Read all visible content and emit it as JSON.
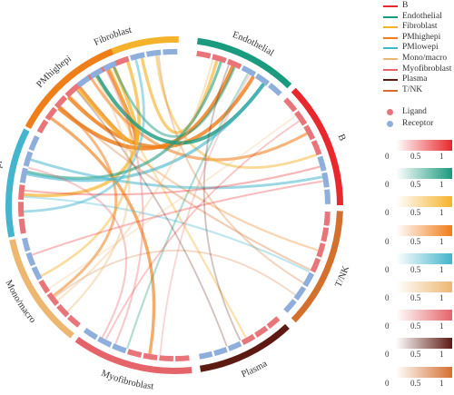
{
  "chart_data": {
    "type": "chord",
    "sectors": [
      {
        "name": "Fibroblast",
        "color": "#f4b32b"
      },
      {
        "name": "Endothelial",
        "color": "#1a9a7e"
      },
      {
        "name": "B",
        "color": "#e8282d"
      },
      {
        "name": "T/NK",
        "color": "#d4702e"
      },
      {
        "name": "Plasma",
        "color": "#5d1a13"
      },
      {
        "name": "Myofibroblast",
        "color": "#e46469"
      },
      {
        "name": "Mono/macro",
        "color": "#edb772"
      },
      {
        "name": "PMlowepi",
        "color": "#43b5cc"
      },
      {
        "name": "PMhighepi",
        "color": "#ef7d18"
      }
    ],
    "legend_order": [
      "B",
      "Endothelial",
      "Fibroblast",
      "PMhighepi",
      "PMlowepi",
      "Mono/macro",
      "Myofibroblast",
      "Plasma",
      "T/NK"
    ],
    "track_legend": [
      {
        "name": "Ligand",
        "color": "#e8757a"
      },
      {
        "name": "Receptor",
        "color": "#8eaedb"
      }
    ],
    "colorbars": [
      {
        "color": "#e8282d",
        "ticks": [
          "0",
          "0.5",
          "1"
        ]
      },
      {
        "color": "#1a9a7e",
        "ticks": [
          "0",
          "0.5",
          "1"
        ]
      },
      {
        "color": "#f4b32b",
        "ticks": [
          "0",
          "0.5",
          "1"
        ]
      },
      {
        "color": "#ef7d18",
        "ticks": [
          "0",
          "0.5",
          "1"
        ]
      },
      {
        "color": "#43b5cc",
        "ticks": [
          "0",
          "0.5",
          "1"
        ]
      },
      {
        "color": "#edb772",
        "ticks": [
          "0",
          "0.5",
          "1"
        ]
      },
      {
        "color": "#e46469",
        "ticks": [
          "0",
          "0.5",
          "1"
        ]
      },
      {
        "color": "#5d1a13",
        "ticks": [
          "0",
          "0.5",
          "1"
        ]
      },
      {
        "color": "#d4702e",
        "ticks": [
          "0",
          "0.5",
          "1"
        ]
      }
    ],
    "links": [
      {
        "from": "PMhighepi",
        "to": "Endothelial",
        "strength": 0.95
      },
      {
        "from": "PMhighepi",
        "to": "Endothelial",
        "strength": 0.9
      },
      {
        "from": "PMhighepi",
        "to": "Fibroblast",
        "strength": 0.85
      },
      {
        "from": "PMhighepi",
        "to": "B",
        "strength": 0.6
      },
      {
        "from": "PMhighepi",
        "to": "Myofibroblast",
        "strength": 0.7
      },
      {
        "from": "PMhighepi",
        "to": "Mono/macro",
        "strength": 0.55
      },
      {
        "from": "PMhighepi",
        "to": "T/NK",
        "strength": 0.3
      },
      {
        "from": "Fibroblast",
        "to": "PMhighepi",
        "strength": 0.8
      },
      {
        "from": "Fibroblast",
        "to": "PMlowepi",
        "strength": 0.75
      },
      {
        "from": "Fibroblast",
        "to": "Endothelial",
        "strength": 0.7
      },
      {
        "from": "Fibroblast",
        "to": "B",
        "strength": 0.5
      },
      {
        "from": "Fibroblast",
        "to": "Plasma",
        "strength": 0.35
      },
      {
        "from": "Fibroblast",
        "to": "Mono/macro",
        "strength": 0.45
      },
      {
        "from": "Endothelial",
        "to": "PMhighepi",
        "strength": 0.9
      },
      {
        "from": "Endothelial",
        "to": "PMlowepi",
        "strength": 0.6
      },
      {
        "from": "Endothelial",
        "to": "Fibroblast",
        "strength": 0.5
      },
      {
        "from": "Endothelial",
        "to": "Myofibroblast",
        "strength": 0.3
      },
      {
        "from": "PMlowepi",
        "to": "Endothelial",
        "strength": 0.65
      },
      {
        "from": "PMlowepi",
        "to": "B",
        "strength": 0.55
      },
      {
        "from": "PMlowepi",
        "to": "Fibroblast",
        "strength": 0.5
      },
      {
        "from": "PMlowepi",
        "to": "T/NK",
        "strength": 0.3
      },
      {
        "from": "B",
        "to": "PMlowepi",
        "strength": 0.3
      },
      {
        "from": "B",
        "to": "Mono/macro",
        "strength": 0.25
      },
      {
        "from": "B",
        "to": "Myofibroblast",
        "strength": 0.2
      },
      {
        "from": "T/NK",
        "to": "PMhighepi",
        "strength": 0.3
      },
      {
        "from": "T/NK",
        "to": "Fibroblast",
        "strength": 0.25
      },
      {
        "from": "T/NK",
        "to": "Mono/macro",
        "strength": 0.2
      },
      {
        "from": "Plasma",
        "to": "Endothelial",
        "strength": 0.2
      },
      {
        "from": "Plasma",
        "to": "PMhighepi",
        "strength": 0.2
      },
      {
        "from": "Myofibroblast",
        "to": "Fibroblast",
        "strength": 0.3
      },
      {
        "from": "Myofibroblast",
        "to": "PMlowepi",
        "strength": 0.3
      },
      {
        "from": "Myofibroblast",
        "to": "Endothelial",
        "strength": 0.2
      },
      {
        "from": "Mono/macro",
        "to": "PMhighepi",
        "strength": 0.35
      },
      {
        "from": "Mono/macro",
        "to": "Endothelial",
        "strength": 0.3
      },
      {
        "from": "Mono/macro",
        "to": "B",
        "strength": 0.2
      }
    ]
  }
}
